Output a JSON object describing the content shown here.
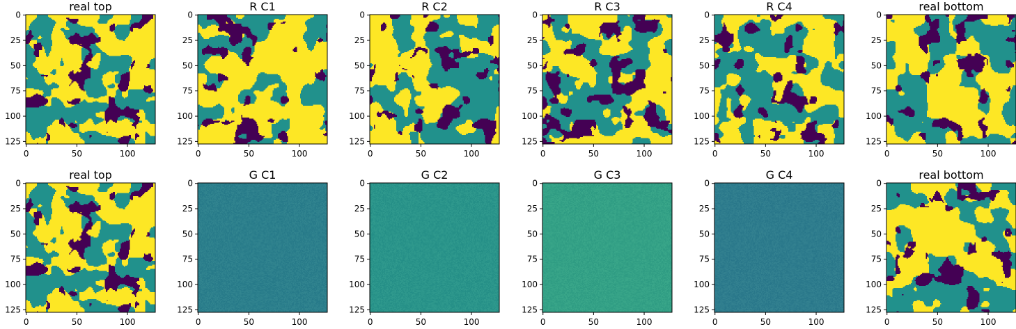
{
  "chart_data": {
    "type": "heatmap",
    "layout": {
      "rows": 2,
      "cols": 6
    },
    "colormap": "viridis",
    "colors": {
      "phase_dark": "#440154",
      "phase_mid": "#21918c",
      "phase_bright": "#fde725",
      "gen_c1": "#2c7f8c",
      "gen_c2": "#2a948a",
      "gen_c3": "#34a186",
      "gen_c4": "#2e7c8d"
    },
    "grid": false,
    "image_size": [
      128,
      128
    ],
    "xlim": [
      0,
      128
    ],
    "ylim": [
      128,
      0
    ],
    "xticks": [
      0,
      50,
      100
    ],
    "yticks": [
      0,
      25,
      50,
      75,
      100,
      125
    ],
    "panels": [
      {
        "title": "real top",
        "kind": "phase",
        "seed": 11
      },
      {
        "title": "R C1",
        "kind": "phase",
        "seed": 12
      },
      {
        "title": "R C2",
        "kind": "phase",
        "seed": 13
      },
      {
        "title": "R C3",
        "kind": "phase",
        "seed": 14
      },
      {
        "title": "R C4",
        "kind": "phase",
        "seed": 15
      },
      {
        "title": "real bottom",
        "kind": "phase",
        "seed": 16
      },
      {
        "title": "real top",
        "kind": "phase",
        "seed": 11
      },
      {
        "title": "G C1",
        "kind": "noise",
        "color_key": "gen_c1"
      },
      {
        "title": "G C2",
        "kind": "noise",
        "color_key": "gen_c2"
      },
      {
        "title": "G C3",
        "kind": "noise",
        "color_key": "gen_c3"
      },
      {
        "title": "G C4",
        "kind": "noise",
        "color_key": "gen_c4"
      },
      {
        "title": "real bottom",
        "kind": "phase",
        "seed": 21
      }
    ]
  }
}
